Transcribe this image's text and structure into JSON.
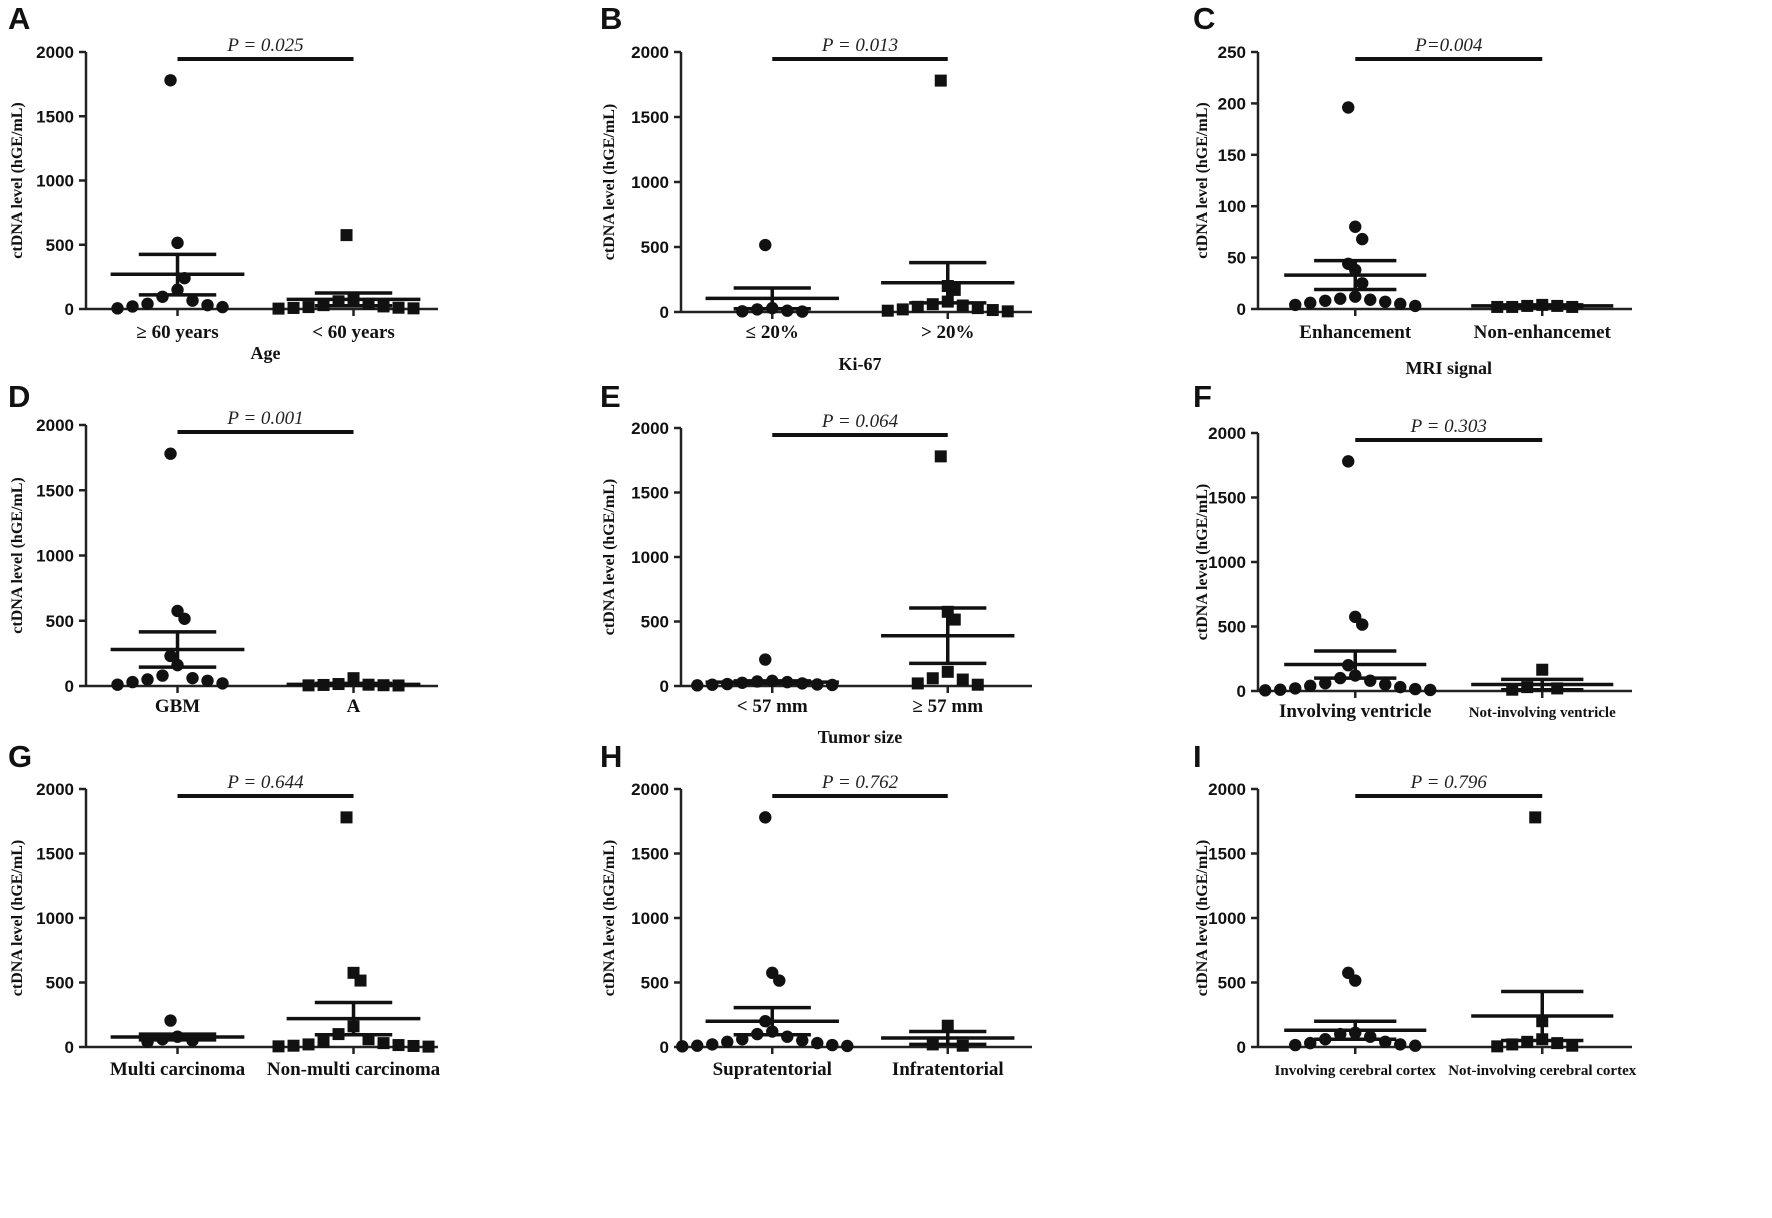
{
  "chart_data": [
    {
      "panel": "A",
      "type": "scatter",
      "p_value": "P = 0.025",
      "xlabel": "Age",
      "ylabel": "ctDNA level (hGE/mL)",
      "ylim": [
        0,
        2000
      ],
      "yticks": [
        0,
        500,
        1000,
        1500,
        2000
      ],
      "groups": [
        {
          "name": "≥ 60 years",
          "marker": "circle",
          "mean": 270,
          "sem_upper": 425,
          "sem_lower": 110,
          "values": [
            1780,
            515,
            240,
            150,
            95,
            65,
            40,
            30,
            20,
            15,
            5
          ]
        },
        {
          "name": "< 60 years",
          "marker": "square",
          "mean": 75,
          "sem_upper": 125,
          "sem_lower": 25,
          "values": [
            575,
            80,
            60,
            40,
            30,
            20,
            15,
            10,
            8,
            5,
            3
          ]
        }
      ]
    },
    {
      "panel": "B",
      "type": "scatter",
      "p_value": "P = 0.013",
      "xlabel": "Ki-67",
      "ylabel": "ctDNA level (hGE/mL)",
      "ylim": [
        0,
        2000
      ],
      "yticks": [
        0,
        500,
        1000,
        1500,
        2000
      ],
      "groups": [
        {
          "name": "≤ 20%",
          "marker": "circle",
          "mean": 105,
          "sem_upper": 185,
          "sem_lower": 25,
          "values": [
            515,
            30,
            20,
            10,
            5,
            3
          ]
        },
        {
          "name": "> 20%",
          "marker": "square",
          "mean": 225,
          "sem_upper": 380,
          "sem_lower": 70,
          "values": [
            1780,
            200,
            170,
            80,
            60,
            50,
            40,
            30,
            20,
            15,
            10,
            5
          ]
        }
      ]
    },
    {
      "panel": "C",
      "type": "scatter",
      "p_value": "P=0.004",
      "xlabel": "MRI signal",
      "ylabel": "ctDNA level (hGE/mL)",
      "ylim": [
        0,
        250
      ],
      "yticks": [
        0,
        50,
        100,
        150,
        200,
        250
      ],
      "groups": [
        {
          "name": "Enhancement",
          "marker": "circle",
          "mean": 33,
          "sem_upper": 47,
          "sem_lower": 19,
          "values": [
            196,
            80,
            68,
            44,
            38,
            25,
            12,
            10,
            9,
            8,
            7,
            6,
            5,
            4,
            3
          ]
        },
        {
          "name": "Non-enhancemet",
          "marker": "square",
          "mean": 3,
          "sem_upper": 4,
          "sem_lower": 2,
          "values": [
            4,
            3,
            3,
            2,
            2,
            2
          ]
        }
      ]
    },
    {
      "panel": "D",
      "type": "scatter",
      "p_value": "P = 0.001",
      "xlabel": "",
      "ylabel": "ctDNA level (hGE/mL)",
      "ylim": [
        0,
        2000
      ],
      "yticks": [
        0,
        500,
        1000,
        1500,
        2000
      ],
      "groups": [
        {
          "name": "GBM",
          "marker": "circle",
          "mean": 280,
          "sem_upper": 415,
          "sem_lower": 145,
          "values": [
            1780,
            575,
            515,
            230,
            160,
            80,
            60,
            50,
            40,
            30,
            20,
            10
          ]
        },
        {
          "name": "A",
          "marker": "square",
          "mean": 12,
          "sem_upper": 20,
          "sem_lower": 5,
          "values": [
            60,
            15,
            10,
            8,
            6,
            5,
            4
          ]
        }
      ]
    },
    {
      "panel": "E",
      "type": "scatter",
      "p_value": "P = 0.064",
      "xlabel": "Tumor size",
      "ylabel": "ctDNA level (hGE/mL)",
      "ylim": [
        0,
        2000
      ],
      "yticks": [
        0,
        500,
        1000,
        1500,
        2000
      ],
      "groups": [
        {
          "name": "< 57 mm",
          "marker": "circle",
          "mean": 30,
          "sem_upper": 40,
          "sem_lower": 20,
          "values": [
            205,
            40,
            35,
            30,
            25,
            20,
            15,
            12,
            10,
            8,
            5
          ]
        },
        {
          "name": "≥ 57 mm",
          "marker": "square",
          "mean": 390,
          "sem_upper": 605,
          "sem_lower": 175,
          "values": [
            1780,
            575,
            515,
            110,
            60,
            50,
            20,
            10
          ]
        }
      ]
    },
    {
      "panel": "F",
      "type": "scatter",
      "p_value": "P = 0.303",
      "xlabel": "",
      "ylabel": "ctDNA level (hGE/mL)",
      "ylim": [
        0,
        2000
      ],
      "yticks": [
        0,
        500,
        1000,
        1500,
        2000
      ],
      "groups": [
        {
          "name": "Involving ventricle",
          "marker": "circle",
          "mean": 205,
          "sem_upper": 310,
          "sem_lower": 100,
          "values": [
            1780,
            575,
            515,
            200,
            120,
            100,
            80,
            60,
            50,
            40,
            30,
            20,
            15,
            10,
            8,
            5
          ]
        },
        {
          "name": "Not-involving ventricle",
          "marker": "square",
          "mean": 50,
          "sem_upper": 90,
          "sem_lower": 10,
          "values": [
            165,
            30,
            20,
            10
          ]
        }
      ]
    },
    {
      "panel": "G",
      "type": "scatter",
      "p_value": "P = 0.644",
      "xlabel": "",
      "ylabel": "ctDNA level (hGE/mL)",
      "ylim": [
        0,
        2000
      ],
      "yticks": [
        0,
        500,
        1000,
        1500,
        2000
      ],
      "groups": [
        {
          "name": "Multi carcinoma",
          "marker": "circle",
          "mean": 78,
          "sem_upper": 100,
          "sem_lower": 55,
          "values": [
            205,
            80,
            60,
            50,
            40
          ]
        },
        {
          "name": "Non-multi carcinoma",
          "marker": "square",
          "mean": 220,
          "sem_upper": 345,
          "sem_lower": 95,
          "values": [
            1780,
            575,
            515,
            160,
            100,
            60,
            40,
            30,
            20,
            15,
            10,
            8,
            5,
            3
          ]
        }
      ]
    },
    {
      "panel": "H",
      "type": "scatter",
      "p_value": "P = 0.762",
      "xlabel": "",
      "ylabel": "ctDNA level (hGE/mL)",
      "ylim": [
        0,
        2000
      ],
      "yticks": [
        0,
        500,
        1000,
        1500,
        2000
      ],
      "groups": [
        {
          "name": "Supratentorial",
          "marker": "circle",
          "mean": 200,
          "sem_upper": 305,
          "sem_lower": 95,
          "values": [
            1780,
            575,
            515,
            200,
            120,
            100,
            80,
            60,
            50,
            40,
            30,
            20,
            15,
            10,
            8,
            5
          ]
        },
        {
          "name": "Infratentorial",
          "marker": "square",
          "mean": 70,
          "sem_upper": 120,
          "sem_lower": 20,
          "values": [
            165,
            20,
            10
          ]
        }
      ]
    },
    {
      "panel": "I",
      "type": "scatter",
      "p_value": "P = 0.796",
      "xlabel": "",
      "ylabel": "ctDNA level (hGE/mL)",
      "ylim": [
        0,
        2000
      ],
      "yticks": [
        0,
        500,
        1000,
        1500,
        2000
      ],
      "groups": [
        {
          "name": "Involving cerebral cortex",
          "marker": "circle",
          "mean": 130,
          "sem_upper": 200,
          "sem_lower": 60,
          "values": [
            575,
            515,
            110,
            100,
            80,
            60,
            40,
            30,
            20,
            15,
            10
          ]
        },
        {
          "name": "Not-involving cerebral cortex",
          "marker": "square",
          "mean": 240,
          "sem_upper": 430,
          "sem_lower": 50,
          "values": [
            1780,
            200,
            60,
            40,
            30,
            20,
            10,
            5
          ]
        }
      ]
    }
  ]
}
